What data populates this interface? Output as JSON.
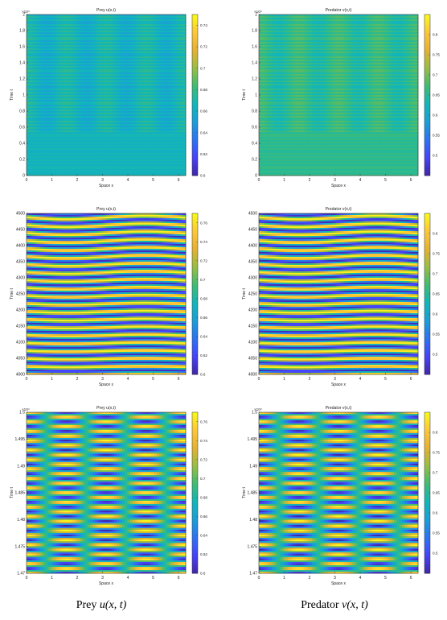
{
  "captions": {
    "left": {
      "text": "Prey ",
      "math": "u(x, t)"
    },
    "right": {
      "text": "Predator ",
      "math": "v(x, t)"
    }
  },
  "colormap": [
    "#3e26a8",
    "#4743f8",
    "#2c73f2",
    "#199fd7",
    "#11b6b9",
    "#3fbc73",
    "#98bd44",
    "#e4b231",
    "#fcc738",
    "#f9fb15"
  ],
  "chart_data": [
    {
      "type": "heatmap",
      "panel": "prey-top",
      "title": "Prey u(x,t)",
      "xlabel": "Space x",
      "ylabel": "Time t",
      "xlim": [
        0,
        6.283
      ],
      "xticks": [
        "0",
        "1",
        "2",
        "3",
        "4",
        "5",
        "6"
      ],
      "ylim": [
        0,
        2
      ],
      "yticks": [
        "0",
        "0.2",
        "0.4",
        "0.6",
        "0.8",
        "1",
        "1.2",
        "1.4",
        "1.6",
        "1.8",
        "2"
      ],
      "y_multiplier": "×10⁴",
      "clim": [
        0.6,
        0.75
      ],
      "cticks": [
        "0.6",
        "0.62",
        "0.64",
        "0.66",
        "0.68",
        "0.7",
        "0.72",
        "0.74",
        "0.76"
      ],
      "pattern": {
        "mode": "early",
        "mean": 0.665,
        "amp": 0.012,
        "rows": 90,
        "split": 0.27,
        "ncol": 4
      }
    },
    {
      "type": "heatmap",
      "panel": "predator-top",
      "title": "Predator v(x,t)",
      "xlabel": "Space x",
      "ylabel": "Time t",
      "xlim": [
        0,
        6.283
      ],
      "xticks": [
        "0",
        "1",
        "2",
        "3",
        "4",
        "5",
        "6"
      ],
      "ylim": [
        0,
        2
      ],
      "yticks": [
        "0",
        "0.2",
        "0.4",
        "0.6",
        "0.8",
        "1",
        "1.2",
        "1.4",
        "1.6",
        "1.8",
        "2"
      ],
      "y_multiplier": "×10⁴",
      "clim": [
        0.45,
        0.85
      ],
      "cticks": [
        "0.5",
        "0.55",
        "0.6",
        "0.65",
        "0.7",
        "0.75",
        "0.8"
      ],
      "pattern": {
        "mode": "early",
        "mean": 0.655,
        "amp": 0.03,
        "rows": 90,
        "split": 0.27,
        "ncol": 4
      }
    },
    {
      "type": "heatmap",
      "panel": "prey-mid",
      "title": "Prey u(x,t)",
      "xlabel": "Space x",
      "ylabel": "Time t",
      "xlim": [
        0,
        6.283
      ],
      "xticks": [
        "0",
        "1",
        "2",
        "3",
        "4",
        "5",
        "6"
      ],
      "ylim": [
        4000,
        4500
      ],
      "yticks": [
        "4000",
        "4050",
        "4100",
        "4150",
        "4200",
        "4250",
        "4300",
        "4350",
        "4400",
        "4450",
        "4500"
      ],
      "y_multiplier": "",
      "clim": [
        0.6,
        0.77
      ],
      "cticks": [
        "0.6",
        "0.62",
        "0.64",
        "0.66",
        "0.68",
        "0.7",
        "0.72",
        "0.74",
        "0.76"
      ],
      "pattern": {
        "mode": "transition",
        "mean": 0.685,
        "amp": 0.08,
        "bands": 20.5
      }
    },
    {
      "type": "heatmap",
      "panel": "predator-mid",
      "title": "Predator v(x,t)",
      "xlabel": "Space x",
      "ylabel": "Time t",
      "xlim": [
        0,
        6.283
      ],
      "xticks": [
        "0",
        "1",
        "2",
        "3",
        "4",
        "5",
        "6"
      ],
      "ylim": [
        4000,
        4500
      ],
      "yticks": [
        "4000",
        "4050",
        "4100",
        "4150",
        "4200",
        "4250",
        "4300",
        "4350",
        "4400",
        "4450",
        "4500"
      ],
      "y_multiplier": "",
      "clim": [
        0.45,
        0.85
      ],
      "cticks": [
        "0.5",
        "0.55",
        "0.6",
        "0.65",
        "0.7",
        "0.75",
        "0.8"
      ],
      "pattern": {
        "mode": "transition",
        "mean": 0.65,
        "amp": 0.19,
        "bands": 20.5
      }
    },
    {
      "type": "heatmap",
      "panel": "prey-bottom",
      "title": "Prey u(x,t)",
      "xlabel": "Space x",
      "ylabel": "Time t",
      "xlim": [
        0,
        6.283
      ],
      "xticks": [
        "0",
        "1",
        "2",
        "3",
        "4",
        "5",
        "6"
      ],
      "ylim": [
        1.47,
        1.5
      ],
      "yticks": [
        "1.47",
        "1.475",
        "1.48",
        "1.485",
        "1.49",
        "1.495",
        "1.5"
      ],
      "y_multiplier": "×10⁴",
      "clim": [
        0.6,
        0.77
      ],
      "cticks": [
        "0.6",
        "0.62",
        "0.64",
        "0.66",
        "0.68",
        "0.7",
        "0.72",
        "0.74",
        "0.76"
      ],
      "pattern": {
        "mode": "standing",
        "mean": 0.685,
        "amp": 0.085,
        "bands": 17,
        "ncol": 4
      }
    },
    {
      "type": "heatmap",
      "panel": "predator-bottom",
      "title": "Predator v(x,t)",
      "xlabel": "Space x",
      "ylabel": "Time t",
      "xlim": [
        0,
        6.283
      ],
      "xticks": [
        "0",
        "1",
        "2",
        "3",
        "4",
        "5",
        "6"
      ],
      "ylim": [
        1.47,
        1.5
      ],
      "yticks": [
        "1.47",
        "1.475",
        "1.48",
        "1.485",
        "1.49",
        "1.495",
        "1.5"
      ],
      "y_multiplier": "×10⁴",
      "clim": [
        0.45,
        0.85
      ],
      "cticks": [
        "0.5",
        "0.55",
        "0.6",
        "0.65",
        "0.7",
        "0.75",
        "0.8"
      ],
      "pattern": {
        "mode": "standing",
        "mean": 0.65,
        "amp": 0.2,
        "bands": 17,
        "ncol": 4
      }
    }
  ]
}
